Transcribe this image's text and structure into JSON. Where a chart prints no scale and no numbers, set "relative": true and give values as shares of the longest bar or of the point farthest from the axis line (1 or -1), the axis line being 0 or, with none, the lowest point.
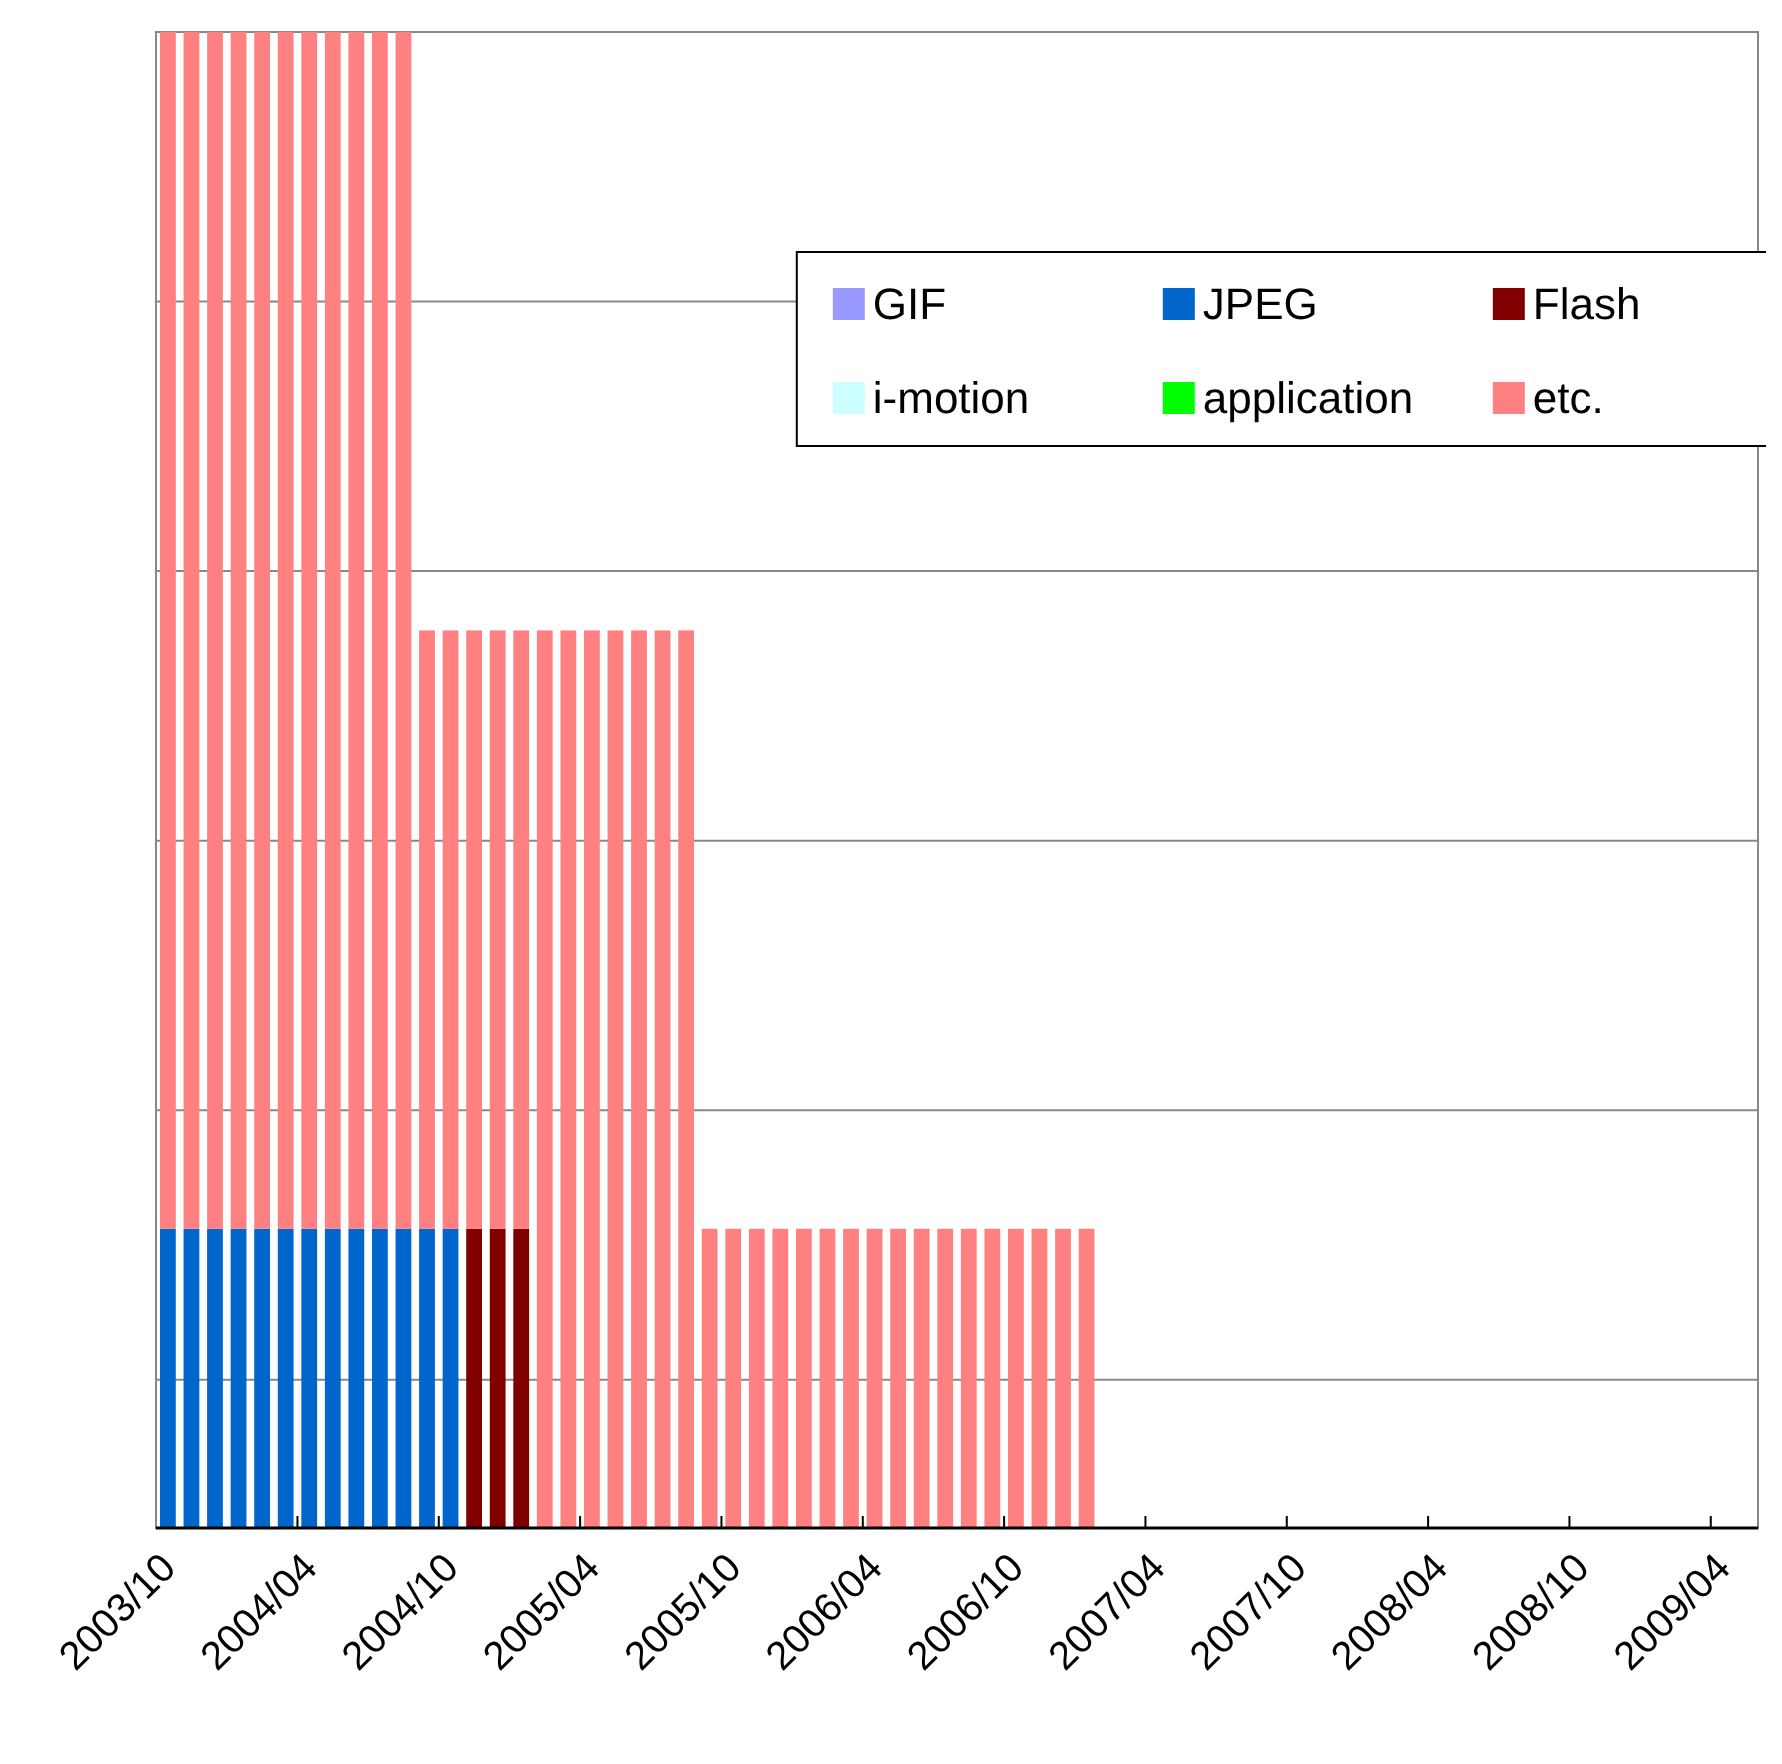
{
  "chart_data": {
    "type": "bar",
    "stacked": true,
    "relative": true,
    "grid": true,
    "legend": "top",
    "categories": [
      "2003/10",
      null,
      null,
      null,
      null,
      null,
      "2004/04",
      null,
      null,
      null,
      null,
      null,
      "2004/10",
      null,
      null,
      null,
      null,
      null,
      "2005/04",
      null,
      null,
      null,
      null,
      null,
      "2005/10",
      null,
      null,
      null,
      null,
      null,
      "2006/04",
      null,
      null,
      null,
      null,
      null,
      "2006/10",
      null,
      null,
      null,
      null,
      null,
      "2007/04",
      null,
      null,
      null,
      null,
      null,
      "2007/10",
      null,
      null,
      null,
      null,
      null,
      "2008/04",
      null,
      null,
      null,
      null,
      null,
      "2008/10",
      null,
      null,
      null,
      null,
      null,
      "2009/04",
      null
    ],
    "series": [
      {
        "name": "GIF",
        "color": "#9999ff",
        "values": [
          0,
          0,
          0,
          0,
          0,
          0,
          0,
          0,
          0,
          0,
          0,
          0,
          0,
          0,
          0,
          0,
          0,
          0,
          0,
          0,
          0,
          0,
          0,
          0,
          0,
          0,
          0,
          0,
          0,
          0,
          0,
          0,
          0,
          0,
          0,
          0,
          0,
          0,
          0,
          0,
          0,
          0,
          0,
          0,
          0,
          0,
          0,
          0,
          0,
          0,
          0,
          0,
          0,
          0,
          0,
          0,
          0,
          0,
          0,
          0,
          0,
          0,
          0,
          0,
          0,
          0,
          0,
          0
        ]
      },
      {
        "name": "JPEG",
        "color": "#0066cc",
        "values": [
          0.2,
          0.2,
          0.2,
          0.2,
          0.2,
          0.2,
          0.2,
          0.2,
          0.2,
          0.2,
          0.2,
          0.2,
          0.2,
          0,
          0,
          0,
          0,
          0,
          0,
          0,
          0,
          0,
          0,
          0,
          0,
          0,
          0,
          0,
          0,
          0,
          0,
          0,
          0,
          0,
          0,
          0,
          0,
          0,
          0,
          0,
          0,
          0,
          0,
          0,
          0,
          0,
          0,
          0,
          0,
          0,
          0,
          0,
          0,
          0,
          0,
          0,
          0,
          0,
          0,
          0,
          0,
          0,
          0,
          0,
          0,
          0,
          0,
          0
        ]
      },
      {
        "name": "Flash",
        "color": "#800000",
        "values": [
          0,
          0,
          0,
          0,
          0,
          0,
          0,
          0,
          0,
          0,
          0,
          0,
          0,
          0.2,
          0.2,
          0.2,
          0,
          0,
          0,
          0,
          0,
          0,
          0,
          0,
          0,
          0,
          0,
          0,
          0,
          0,
          0,
          0,
          0,
          0,
          0,
          0,
          0,
          0,
          0,
          0,
          0,
          0,
          0,
          0,
          0,
          0,
          0,
          0,
          0,
          0,
          0,
          0,
          0,
          0,
          0,
          0,
          0,
          0,
          0,
          0,
          0,
          0,
          0,
          0,
          0,
          0,
          0,
          0
        ]
      },
      {
        "name": "i-motion",
        "color": "#ccffff",
        "values": [
          0,
          0,
          0,
          0,
          0,
          0,
          0,
          0,
          0,
          0,
          0,
          0,
          0,
          0,
          0,
          0,
          0,
          0,
          0,
          0,
          0,
          0,
          0,
          0,
          0,
          0,
          0,
          0,
          0,
          0,
          0,
          0,
          0,
          0,
          0,
          0,
          0,
          0,
          0,
          0,
          0,
          0,
          0,
          0,
          0,
          0,
          0,
          0,
          0,
          0,
          0,
          0,
          0,
          0,
          0,
          0,
          0,
          0,
          0,
          0,
          0,
          0,
          0,
          0,
          0,
          0,
          0,
          0
        ]
      },
      {
        "name": "application",
        "color": "#00ff00",
        "values": [
          0,
          0,
          0,
          0,
          0,
          0,
          0,
          0,
          0,
          0,
          0,
          0,
          0,
          0,
          0,
          0,
          0,
          0,
          0,
          0,
          0,
          0,
          0,
          0,
          0,
          0,
          0,
          0,
          0,
          0,
          0,
          0,
          0,
          0,
          0,
          0,
          0,
          0,
          0,
          0,
          0,
          0,
          0,
          0,
          0,
          0,
          0,
          0,
          0,
          0,
          0,
          0,
          0,
          0,
          0,
          0,
          0,
          0,
          0,
          0,
          0,
          0,
          0,
          0,
          0,
          0,
          0,
          0
        ]
      },
      {
        "name": "etc.",
        "color": "#ff8080",
        "values": [
          0.8,
          0.8,
          0.8,
          0.8,
          0.8,
          0.8,
          0.8,
          0.8,
          0.8,
          0.8,
          0.8,
          0.4,
          0.4,
          0.4,
          0.4,
          0.4,
          0.6,
          0.6,
          0.6,
          0.6,
          0.6,
          0.6,
          0.6,
          0.2,
          0.2,
          0.2,
          0.2,
          0.2,
          0.2,
          0.2,
          0.2,
          0.2,
          0.2,
          0.2,
          0.2,
          0.2,
          0.2,
          0.2,
          0.2,
          0.2,
          0,
          0,
          0,
          0,
          0,
          0,
          0,
          0,
          0,
          0,
          0,
          0,
          0,
          0,
          0,
          0,
          0,
          0,
          0,
          0,
          0,
          0,
          0,
          0,
          0,
          0,
          0,
          0
        ]
      }
    ]
  }
}
